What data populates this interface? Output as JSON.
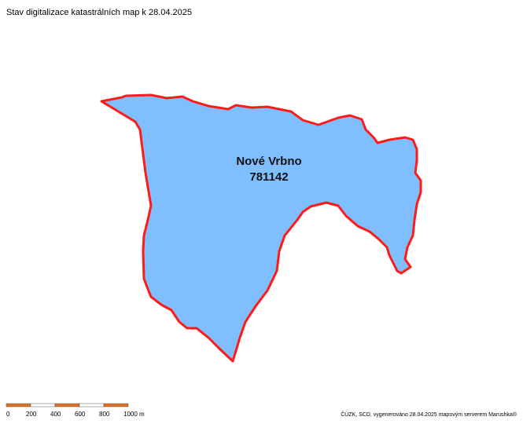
{
  "header": {
    "title": "Stav digitalizace katastrálních map k 28.04.2025"
  },
  "map": {
    "area": {
      "name": "Nové Vrbno",
      "code": "781142"
    }
  },
  "scale_bar": {
    "labels": [
      "0",
      "200",
      "400",
      "600",
      "800",
      "1000 m"
    ]
  },
  "footer": {
    "credits": "ČÚZK, SCD, vygenerováno 28.04.2025 mapovým serverem Marushka®"
  }
}
